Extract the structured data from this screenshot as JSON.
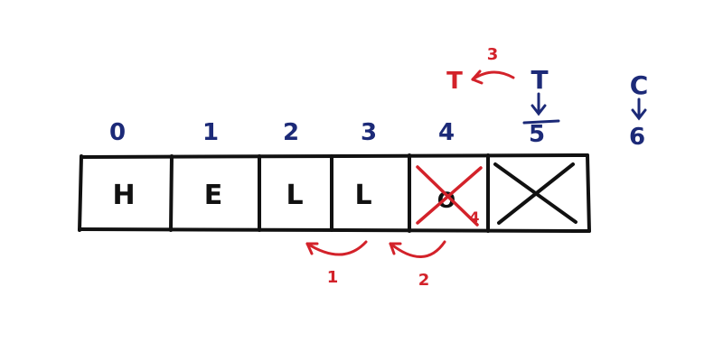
{
  "colors": {
    "ink": "#111111",
    "index": "#1c2a78",
    "annotation": "#d3222a"
  },
  "cells": [
    {
      "index": "0",
      "char": "H"
    },
    {
      "index": "1",
      "char": "E"
    },
    {
      "index": "2",
      "char": "L"
    },
    {
      "index": "3",
      "char": "L"
    },
    {
      "index": "4",
      "char": "O",
      "crossed": true
    },
    {
      "index": "5",
      "char": "",
      "crossed": true
    }
  ],
  "pointers": {
    "tail_label": "T",
    "tail_target": "5",
    "capacity_label": "C",
    "capacity_target": "6",
    "old_tail_label": "T"
  },
  "steps": {
    "step1": "1",
    "step2": "2",
    "step3": "3",
    "step4": "4"
  }
}
